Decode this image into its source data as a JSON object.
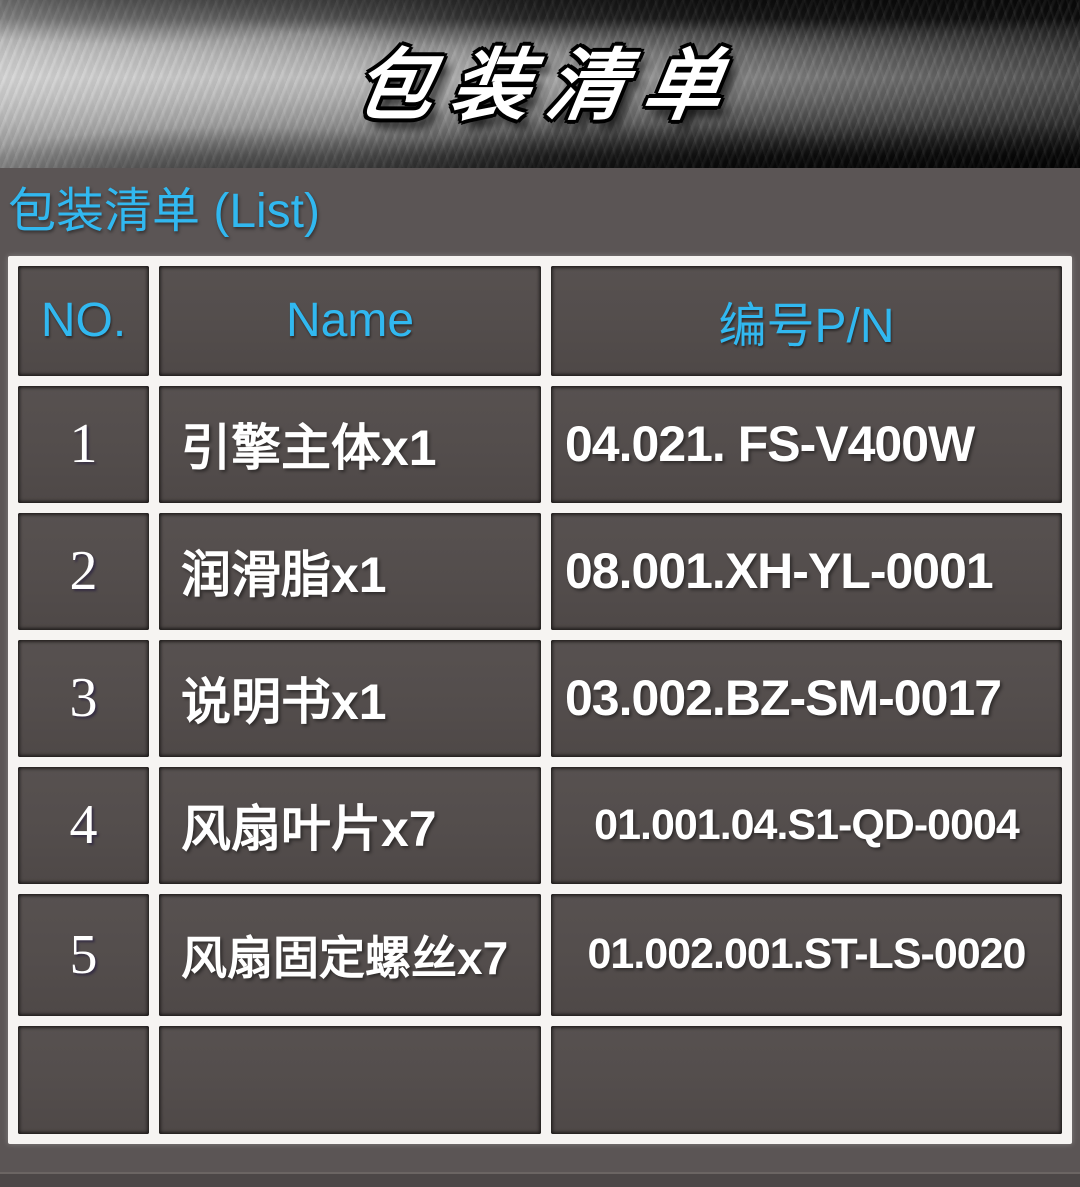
{
  "banner": {
    "title": "包装清单"
  },
  "section": {
    "title": "包装清单 (List)"
  },
  "table": {
    "headers": [
      "NO.",
      "Name",
      "编号P/N"
    ],
    "rows": [
      {
        "no": "1",
        "name": "引擎主体x1",
        "pn": "04.021. FS-V400W"
      },
      {
        "no": "2",
        "name": "润滑脂x1",
        "pn": "08.001.XH-YL-0001"
      },
      {
        "no": "3",
        "name": "说明书x1",
        "pn": "03.002.BZ-SM-0017"
      },
      {
        "no": "4",
        "name": "风扇叶片x7",
        "pn": "01.001.04.S1-QD-0004"
      },
      {
        "no": "5",
        "name": "风扇固定螺丝x7",
        "pn": "01.002.001.ST-LS-0020"
      },
      {
        "no": "",
        "name": "",
        "pn": ""
      }
    ]
  },
  "colors": {
    "accent_cyan": "#31b8f0",
    "cell_background": "#534d4c",
    "page_background": "#5b5555",
    "table_border": "#f6f4f2",
    "text_white": "#ffffff"
  }
}
